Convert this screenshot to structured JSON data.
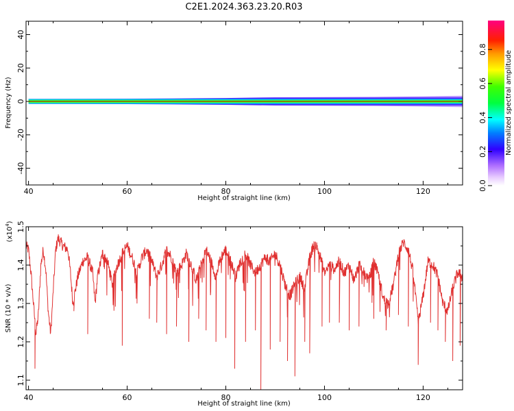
{
  "title": "C2E1.2024.363.23.20.R03",
  "colors": {
    "snr_line": "#e03030",
    "center_line": "#111111",
    "frame": "#000000"
  },
  "chart_data": [
    {
      "type": "heatmap",
      "xlabel": "Height of straight line (km)",
      "ylabel": "Frequency (Hz)",
      "xlim": [
        39.5,
        128
      ],
      "ylim": [
        -50,
        48
      ],
      "xticks": [
        40,
        60,
        80,
        100,
        120
      ],
      "yticks": [
        -40,
        -20,
        0,
        20,
        40
      ],
      "grid": false,
      "colorbar": {
        "label": "Normalized spectral amplitude",
        "range": [
          0,
          0.97
        ],
        "ticks": [
          "0.0",
          "0.2",
          "0.4",
          "0.6",
          "0.8"
        ],
        "colormap": "rainbow (white-violet-blue-cyan-green-yellow-red-magenta)"
      },
      "band_center_hz": 0,
      "band_halfwidth_hz": [
        {
          "x": 40,
          "w": 1.5
        },
        {
          "x": 60,
          "w": 1.6
        },
        {
          "x": 80,
          "w": 2.0
        },
        {
          "x": 90,
          "w": 2.5
        },
        {
          "x": 100,
          "w": 2.6
        },
        {
          "x": 110,
          "w": 2.7
        },
        {
          "x": 120,
          "w": 3.0
        },
        {
          "x": 128,
          "w": 3.5
        }
      ]
    },
    {
      "type": "line",
      "xlabel": "Height of straight line (km)",
      "ylabel": "SNR (10 * v/v)",
      "yscale_label": "(x10",
      "yscale_exp": "4",
      "yscale_close": ")",
      "xlim": [
        39.5,
        128
      ],
      "ylim": [
        1.075,
        1.5
      ],
      "xticks": [
        40,
        60,
        80,
        100,
        120
      ],
      "yticks": [
        "1.1",
        "1.2",
        "1.3",
        "1.4",
        "1.5"
      ],
      "ytick_values": [
        1.1,
        1.2,
        1.3,
        1.4,
        1.5
      ],
      "grid": false,
      "series": [
        {
          "color": "#e03030",
          "envelope": [
            [
              39.5,
              1.45
            ],
            [
              40,
              1.44
            ],
            [
              40.5,
              1.38
            ],
            [
              41,
              1.3
            ],
            [
              41.5,
              1.22
            ],
            [
              42,
              1.27
            ],
            [
              42.5,
              1.4
            ],
            [
              43,
              1.44
            ],
            [
              43.5,
              1.39
            ],
            [
              44,
              1.28
            ],
            [
              44.5,
              1.22
            ],
            [
              45,
              1.33
            ],
            [
              45.5,
              1.44
            ],
            [
              46,
              1.47
            ],
            [
              47,
              1.45
            ],
            [
              48,
              1.44
            ],
            [
              48.5,
              1.38
            ],
            [
              49,
              1.3
            ],
            [
              50,
              1.37
            ],
            [
              51,
              1.41
            ],
            [
              52,
              1.42
            ],
            [
              53,
              1.38
            ],
            [
              53.5,
              1.3
            ],
            [
              54,
              1.37
            ],
            [
              55,
              1.43
            ],
            [
              56,
              1.41
            ],
            [
              57,
              1.35
            ],
            [
              58,
              1.4
            ],
            [
              59,
              1.43
            ],
            [
              60,
              1.45
            ],
            [
              61,
              1.42
            ],
            [
              62,
              1.38
            ],
            [
              63,
              1.42
            ],
            [
              64,
              1.44
            ],
            [
              65,
              1.41
            ],
            [
              66,
              1.37
            ],
            [
              67,
              1.4
            ],
            [
              68,
              1.44
            ],
            [
              69,
              1.42
            ],
            [
              70,
              1.38
            ],
            [
              71,
              1.4
            ],
            [
              72,
              1.43
            ],
            [
              73,
              1.4
            ],
            [
              74,
              1.36
            ],
            [
              75,
              1.4
            ],
            [
              76,
              1.44
            ],
            [
              77,
              1.41
            ],
            [
              78,
              1.37
            ],
            [
              79,
              1.42
            ],
            [
              80,
              1.44
            ],
            [
              81,
              1.41
            ],
            [
              82,
              1.37
            ],
            [
              83,
              1.41
            ],
            [
              84,
              1.43
            ],
            [
              85,
              1.4
            ],
            [
              86,
              1.38
            ],
            [
              87,
              1.4
            ],
            [
              88,
              1.42
            ],
            [
              89,
              1.41
            ],
            [
              90,
              1.43
            ],
            [
              91,
              1.4
            ],
            [
              92,
              1.35
            ],
            [
              93,
              1.32
            ],
            [
              94,
              1.35
            ],
            [
              95,
              1.37
            ],
            [
              96,
              1.34
            ],
            [
              97,
              1.42
            ],
            [
              98,
              1.46
            ],
            [
              99,
              1.43
            ],
            [
              100,
              1.38
            ],
            [
              101,
              1.4
            ],
            [
              102,
              1.39
            ],
            [
              103,
              1.41
            ],
            [
              104,
              1.38
            ],
            [
              105,
              1.4
            ],
            [
              106,
              1.36
            ],
            [
              107,
              1.4
            ],
            [
              108,
              1.38
            ],
            [
              109,
              1.36
            ],
            [
              110,
              1.41
            ],
            [
              111,
              1.37
            ],
            [
              112,
              1.31
            ],
            [
              113,
              1.3
            ],
            [
              114,
              1.35
            ],
            [
              115,
              1.43
            ],
            [
              116,
              1.46
            ],
            [
              117,
              1.44
            ],
            [
              118,
              1.38
            ],
            [
              119,
              1.25
            ],
            [
              120,
              1.32
            ],
            [
              121,
              1.41
            ],
            [
              122,
              1.4
            ],
            [
              123,
              1.37
            ],
            [
              124,
              1.3
            ],
            [
              125,
              1.28
            ],
            [
              126,
              1.34
            ],
            [
              127,
              1.38
            ],
            [
              128,
              1.37
            ]
          ],
          "dips": [
            [
              41.3,
              1.13
            ],
            [
              49.2,
              1.28
            ],
            [
              52.0,
              1.22
            ],
            [
              59.0,
              1.19
            ],
            [
              62.0,
              1.3
            ],
            [
              64.5,
              1.26
            ],
            [
              66.0,
              1.25
            ],
            [
              68.0,
              1.22
            ],
            [
              70.0,
              1.24
            ],
            [
              72.5,
              1.2
            ],
            [
              74.5,
              1.26
            ],
            [
              76.0,
              1.23
            ],
            [
              78.0,
              1.2
            ],
            [
              80.0,
              1.21
            ],
            [
              81.8,
              1.13
            ],
            [
              84.0,
              1.2
            ],
            [
              86.0,
              1.23
            ],
            [
              87.1,
              1.075
            ],
            [
              89.0,
              1.18
            ],
            [
              91.0,
              1.2
            ],
            [
              92.5,
              1.15
            ],
            [
              94.0,
              1.11
            ],
            [
              96.0,
              1.2
            ],
            [
              97.0,
              1.17
            ],
            [
              99.5,
              1.24
            ],
            [
              101.0,
              1.25
            ],
            [
              103.0,
              1.25
            ],
            [
              105.0,
              1.23
            ],
            [
              107.0,
              1.24
            ],
            [
              110.0,
              1.26
            ],
            [
              112.5,
              1.23
            ],
            [
              115.0,
              1.27
            ],
            [
              117.0,
              1.24
            ],
            [
              119.0,
              1.14
            ],
            [
              121.5,
              1.25
            ],
            [
              123.0,
              1.23
            ],
            [
              124.5,
              1.2
            ],
            [
              126.0,
              1.15
            ],
            [
              127.5,
              1.19
            ]
          ]
        }
      ]
    }
  ]
}
